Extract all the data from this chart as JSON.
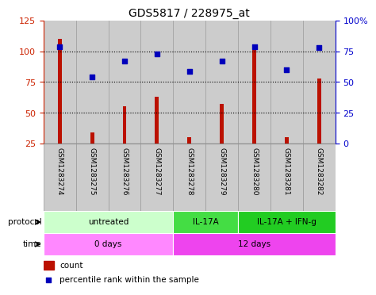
{
  "title": "GDS5817 / 228975_at",
  "samples": [
    "GSM1283274",
    "GSM1283275",
    "GSM1283276",
    "GSM1283277",
    "GSM1283278",
    "GSM1283279",
    "GSM1283280",
    "GSM1283281",
    "GSM1283282"
  ],
  "counts": [
    110,
    34,
    55,
    63,
    30,
    57,
    105,
    30,
    78
  ],
  "percentiles": [
    79,
    54,
    67,
    73,
    59,
    67,
    79,
    60,
    78
  ],
  "ylim_left": [
    25,
    125
  ],
  "ylim_right": [
    0,
    100
  ],
  "yticks_left": [
    25,
    50,
    75,
    100,
    125
  ],
  "yticks_right": [
    0,
    25,
    50,
    75,
    100
  ],
  "yticklabels_right": [
    "0",
    "25",
    "50",
    "75",
    "100%"
  ],
  "bar_color": "#bb1100",
  "dot_color": "#0000bb",
  "protocol_groups": [
    {
      "label": "untreated",
      "start": 0,
      "end": 4,
      "color": "#ccffcc"
    },
    {
      "label": "IL-17A",
      "start": 4,
      "end": 6,
      "color": "#44dd44"
    },
    {
      "label": "IL-17A + IFN-g",
      "start": 6,
      "end": 9,
      "color": "#22cc22"
    }
  ],
  "time_groups": [
    {
      "label": "0 days",
      "start": 0,
      "end": 4,
      "color": "#ff88ff"
    },
    {
      "label": "12 days",
      "start": 4,
      "end": 9,
      "color": "#ee44ee"
    }
  ],
  "protocol_label": "protocol",
  "time_label": "time",
  "legend_count_label": "count",
  "legend_percentile_label": "percentile rank within the sample",
  "bg_color": "#ffffff",
  "axis_left_color": "#cc2200",
  "axis_right_color": "#0000cc",
  "dotted_line_color": "#000000",
  "sample_bg_color": "#cccccc",
  "sample_border_color": "#999999"
}
